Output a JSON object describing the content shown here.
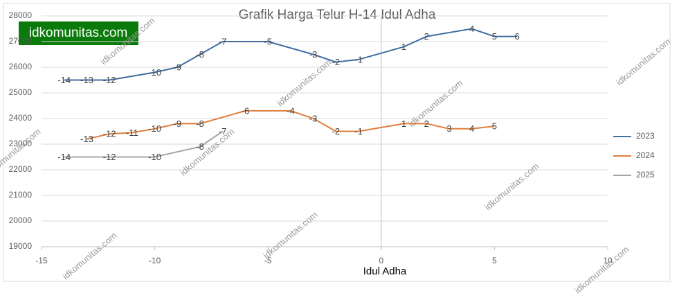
{
  "chart_data": {
    "type": "line",
    "title": "Grafik Harga Telur H-14 Idul Adha",
    "x_label": "Idul Adha",
    "badge": "idkomunitas.com",
    "watermark": "idkomunitas.com",
    "xlim": [
      -15,
      10
    ],
    "xticks": [
      -15,
      -10,
      -5,
      0,
      5,
      10
    ],
    "ylim": [
      19000,
      28000
    ],
    "yticks": [
      19000,
      20000,
      21000,
      22000,
      23000,
      24000,
      25000,
      26000,
      27000,
      28000
    ],
    "grid": true,
    "legend": "right",
    "series": [
      {
        "name": "2023",
        "color": "#3f6ea1",
        "x": [
          -14,
          -13,
          -12,
          -10,
          -9,
          -8,
          -7,
          -5,
          -3,
          -2,
          -1,
          1,
          2,
          4,
          5,
          6
        ],
        "values": [
          25500,
          25500,
          25500,
          25800,
          26000,
          26500,
          27000,
          27000,
          26500,
          26200,
          26300,
          26800,
          27200,
          27500,
          27200,
          27200
        ]
      },
      {
        "name": "2024",
        "color": "#e07d3a",
        "x": [
          -13,
          -12,
          -11,
          -10,
          -9,
          -8,
          -6,
          -4,
          -3,
          -2,
          -1,
          1,
          2,
          3,
          4,
          5
        ],
        "values": [
          23200,
          23400,
          23450,
          23600,
          23800,
          23800,
          24300,
          24300,
          24000,
          23500,
          23500,
          23800,
          23800,
          23600,
          23600,
          23700
        ]
      },
      {
        "name": "2025",
        "color": "#a5a5a5",
        "x": [
          -14,
          -12,
          -10,
          -8,
          -7
        ],
        "values": [
          22500,
          22500,
          22500,
          22900,
          23500
        ]
      }
    ]
  }
}
